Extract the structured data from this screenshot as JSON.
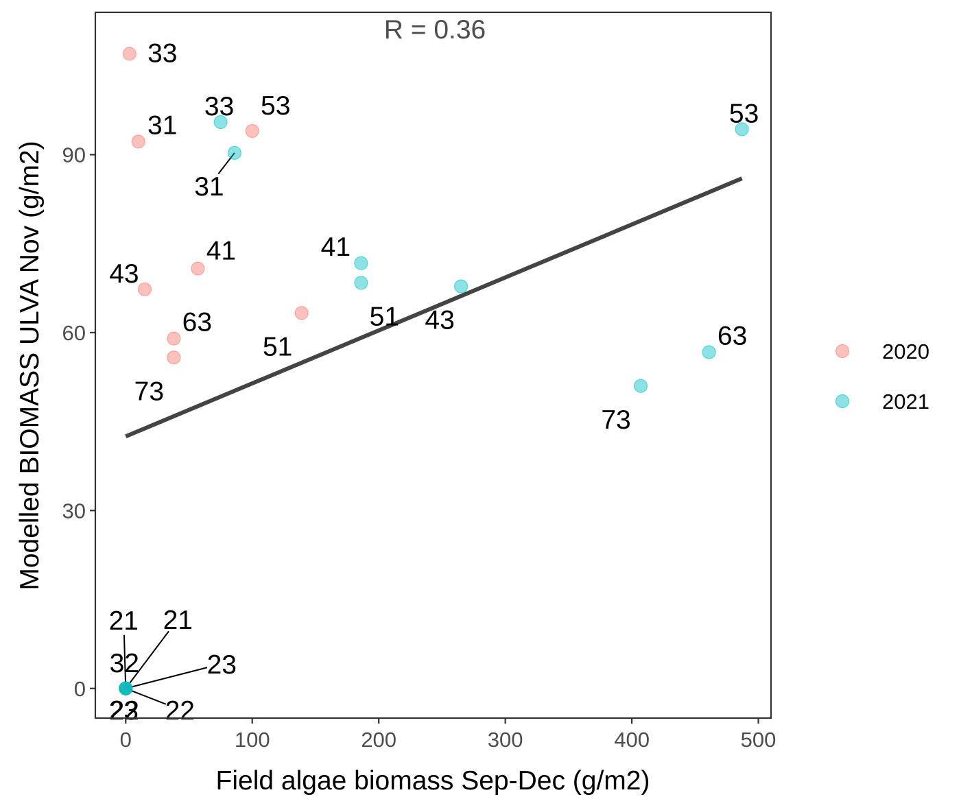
{
  "chart_data": {
    "type": "scatter",
    "title": "",
    "xlabel": "Field algae biomass Sep-Dec (g/m2)",
    "ylabel": "Modelled BIOMASS ULVA Nov (g/m2)",
    "xlim": [
      -24,
      510
    ],
    "ylim": [
      -5,
      114
    ],
    "x_ticks": [
      0,
      100,
      200,
      300,
      400,
      500
    ],
    "y_ticks": [
      0,
      30,
      60,
      90
    ],
    "annotation": "R = 0.36",
    "regression_line": {
      "x0": 0,
      "y0": 42.5,
      "x1": 487,
      "y1": 86
    },
    "legend": {
      "position": "right",
      "entries": [
        {
          "label": "2020",
          "color": "#F8766D"
        },
        {
          "label": "2021",
          "color": "#00BFC4"
        }
      ]
    },
    "series": [
      {
        "name": "2020",
        "color": "#F8766D",
        "points": [
          {
            "x": 3,
            "y": 107,
            "label": "33"
          },
          {
            "x": 10,
            "y": 92.2,
            "label": "31"
          },
          {
            "x": 100,
            "y": 94,
            "label": "53"
          },
          {
            "x": 57,
            "y": 70.8,
            "label": "41"
          },
          {
            "x": 15,
            "y": 67.3,
            "label": "43"
          },
          {
            "x": 139,
            "y": 63.3,
            "label": "51"
          },
          {
            "x": 38,
            "y": 59,
            "label": "63"
          },
          {
            "x": 38,
            "y": 55.8,
            "label": "73"
          },
          {
            "x": 0,
            "y": 0,
            "label": "21"
          },
          {
            "x": 0,
            "y": 0,
            "label": "32"
          },
          {
            "x": 0,
            "y": 0,
            "label": "22"
          }
        ]
      },
      {
        "name": "2021",
        "color": "#00BFC4",
        "points": [
          {
            "x": 75,
            "y": 95.5,
            "label": "33"
          },
          {
            "x": 86,
            "y": 90.3,
            "label": "31"
          },
          {
            "x": 487,
            "y": 94.3,
            "label": "53"
          },
          {
            "x": 186,
            "y": 71.7,
            "label": "41"
          },
          {
            "x": 186,
            "y": 68.4,
            "label": "51"
          },
          {
            "x": 265,
            "y": 67.8,
            "label": "43"
          },
          {
            "x": 461,
            "y": 56.7,
            "label": "63"
          },
          {
            "x": 407,
            "y": 51,
            "label": "73"
          },
          {
            "x": 0,
            "y": 0,
            "label": "21"
          },
          {
            "x": 0,
            "y": 0,
            "label": "23"
          },
          {
            "x": 0,
            "y": 0,
            "label": "22"
          },
          {
            "x": 0,
            "y": 0,
            "label": "23"
          }
        ]
      }
    ]
  }
}
